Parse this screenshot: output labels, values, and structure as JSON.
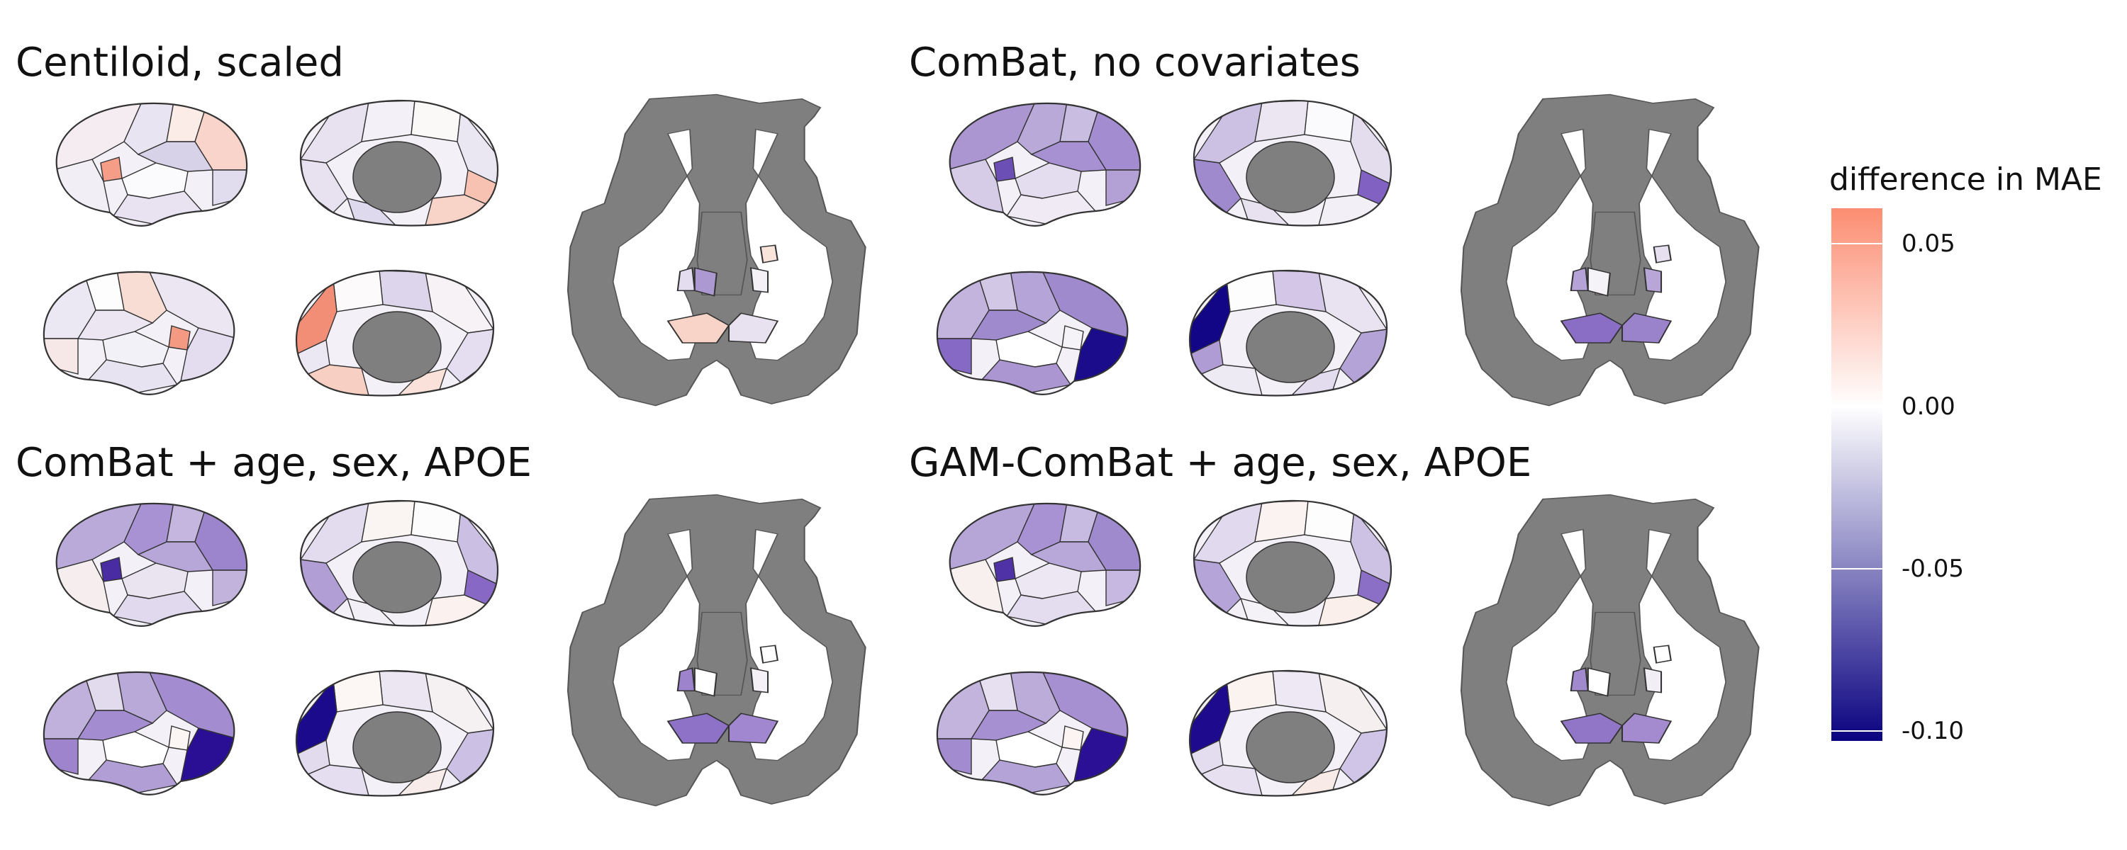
{
  "panels": [
    {
      "title": "Centiloid, scaled",
      "colors": {
        "latA": [
          "#f5ecf2",
          "#e9e4f1",
          "#fbece8",
          "#f8d4cb",
          "#f59d86",
          "#fbfbfd",
          "#e2ddee",
          "#f1eef6",
          "#e9e3f1",
          "#d8d2e9"
        ],
        "medA": [
          "#e7e1f0",
          "#f3f0f7",
          "#fbf8f8",
          "#ebe7f2",
          "#f8c2b2",
          "#e8e1f0",
          "#dfd9ed",
          "#f8d3c8"
        ],
        "latB": [
          "#ebe6f2",
          "#f8ddd5",
          "#fdfdfd",
          "#ebe8f3",
          "#f59a82",
          "#f3f1f8",
          "#f7e8e8",
          "#e3ddef",
          "#e8e3f1"
        ],
        "medB": [
          "#f6f2f6",
          "#dcd5eb",
          "#fcfafa",
          "#f28d76",
          "#ece8f3",
          "#e4def0",
          "#fae1d9",
          "#f8cfc3"
        ],
        "coronal": [
          "#e3ddef",
          "#ad99d2",
          "#f8d4c8",
          "#f3f0f7",
          "#e8e2f0",
          "#f9e4dc"
        ]
      }
    },
    {
      "title": "ComBat, no covariates",
      "colors": {
        "latA": [
          "#ab96d2",
          "#b8a9d9",
          "#c9bde2",
          "#a38cd0",
          "#6c4fb4",
          "#e4ddef",
          "#b3a1d6",
          "#d6cce8",
          "#efeaf4",
          "#a891d3"
        ],
        "medA": [
          "#ccc1e3",
          "#ebe6f2",
          "#fbfafc",
          "#e4ddee",
          "#8162c2",
          "#a08ace",
          "#e8e2f0",
          "#f2eff6"
        ],
        "latB": [
          "#a08ace",
          "#b4a4d7",
          "#d3c7e6",
          "#c3b4de",
          "#f6f3f8",
          "#ffffff",
          "#8669c4",
          "#1a0c8a",
          "#ab96d2"
        ],
        "medB": [
          "#e9e3f1",
          "#d3c6e6",
          "#fdfdfd",
          "#120687",
          "#b09cd4",
          "#b4a3d7",
          "#e3dcee",
          "#eeeaf4"
        ],
        "coronal": [
          "#b5a3d7",
          "#f6f3f8",
          "#8a6ec5",
          "#b8a6d8",
          "#9b83cc",
          "#e6e0f0"
        ]
      }
    },
    {
      "title": "ComBat + age, sex, APOE",
      "colors": {
        "latA": [
          "#b9aad9",
          "#a892d3",
          "#c4b6de",
          "#9d85cd",
          "#4a2ca2",
          "#eae4f1",
          "#c2b3dd",
          "#f6eeee",
          "#e1daee",
          "#b7a6d8"
        ],
        "medA": [
          "#e3dcee",
          "#faf4f3",
          "#fcfcfd",
          "#cbbfe3",
          "#8768c5",
          "#b19ed5",
          "#f2eff6",
          "#fbf2ef"
        ],
        "latB": [
          "#a38dd0",
          "#b8a9d9",
          "#e2dbee",
          "#c0b1dc",
          "#fbf5f3",
          "#ffffff",
          "#9d84cd",
          "#2a0f95",
          "#b19ed5"
        ],
        "medB": [
          "#f5f0f2",
          "#ece6f2",
          "#fcf6f5",
          "#1c0a8c",
          "#e2dbee",
          "#ccc1e4",
          "#f7ece9",
          "#e5def0"
        ],
        "coronal": [
          "#9c83cc",
          "#ffffff",
          "#8e72c7",
          "#f3f0f7",
          "#a187cf",
          "#ffffff"
        ]
      }
    },
    {
      "title": "GAM-ComBat + age, sex, APOE",
      "colors": {
        "latA": [
          "#b6a6d8",
          "#a892d3",
          "#c8bbe2",
          "#a08ace",
          "#4f33a6",
          "#ece7f2",
          "#c6b8e0",
          "#f7f0ef",
          "#e4ddef",
          "#b8a8d9"
        ],
        "medA": [
          "#e1daee",
          "#fbf3f1",
          "#fdfdfd",
          "#cdc2e4",
          "#8b6ec6",
          "#b5a4d7",
          "#f5f2f7",
          "#faefeb"
        ],
        "latB": [
          "#a690d2",
          "#bbacda",
          "#e6e0f0",
          "#c3b4de",
          "#fbf4f2",
          "#ffffff",
          "#a28bcf",
          "#2b1096",
          "#b4a3d7"
        ],
        "medB": [
          "#f6eff0",
          "#ede8f3",
          "#fbf3f0",
          "#1d0a8c",
          "#e4ddef",
          "#d0c5e6",
          "#f8ebe7",
          "#e6e0f0"
        ],
        "coronal": [
          "#a08acd",
          "#ffffff",
          "#9176c8",
          "#f1eef6",
          "#a48bd0",
          "#ffffff"
        ]
      }
    }
  ],
  "legend": {
    "title": "difference in MAE",
    "ticks": [
      {
        "label": "0.05",
        "value": 0.05
      },
      {
        "label": "0.00",
        "value": 0.0
      },
      {
        "label": "-0.05",
        "value": -0.05
      },
      {
        "label": "-0.10",
        "value": -0.1
      }
    ],
    "range": [
      -0.103,
      0.061
    ],
    "colors": {
      "high": "#fc8d72",
      "mid": "#ffffff",
      "low": "#0a0280"
    }
  },
  "style": {
    "background_fill": "#7f7f7f",
    "outline": "#333333"
  }
}
